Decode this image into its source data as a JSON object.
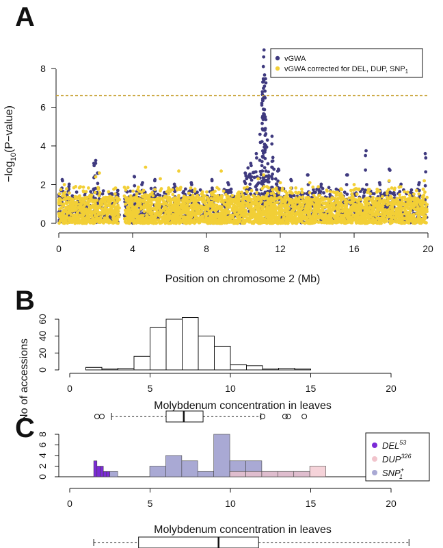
{
  "chart_data": [
    {
      "panel": "A",
      "type": "scatter",
      "xlabel": "Position on chromosome 2 (Mb)",
      "ylabel_prefix": "−log",
      "ylabel_sub": "10",
      "ylabel_suffix": "(P−value)",
      "xlim": [
        0,
        20
      ],
      "ylim": [
        0,
        9
      ],
      "xticks": [
        0,
        4,
        8,
        12,
        16,
        20
      ],
      "yticks": [
        0,
        2,
        4,
        6,
        8
      ],
      "threshold": 6.6,
      "legend_position": "top-right",
      "series": [
        {
          "name": "vGWA",
          "color": "#3f3a7f",
          "peaks": [
            [
              0.2,
              2.2
            ],
            [
              0.55,
              1.9
            ],
            [
              1.9,
              3.1
            ],
            [
              2.0,
              3.25
            ],
            [
              2.1,
              2.6
            ],
            [
              3.2,
              1.5
            ],
            [
              4.1,
              2.4
            ],
            [
              4.5,
              2.0
            ],
            [
              5.2,
              2.2
            ],
            [
              6.3,
              1.9
            ],
            [
              7.2,
              2.0
            ],
            [
              8.3,
              2.2
            ],
            [
              9.2,
              2.0
            ],
            [
              10.1,
              2.6
            ],
            [
              10.4,
              3.1
            ],
            [
              10.7,
              3.6
            ],
            [
              10.9,
              4.6
            ],
            [
              11.0,
              6.2
            ],
            [
              11.05,
              7.3
            ],
            [
              11.08,
              8.1
            ],
            [
              11.1,
              8.6
            ],
            [
              11.12,
              8.96
            ],
            [
              11.18,
              5.5
            ],
            [
              11.3,
              4.3
            ],
            [
              11.55,
              4.5
            ],
            [
              11.6,
              3.4
            ],
            [
              11.9,
              2.8
            ],
            [
              12.6,
              2.2
            ],
            [
              13.5,
              2.5
            ],
            [
              14.2,
              1.9
            ],
            [
              15.6,
              2.5
            ],
            [
              16.65,
              3.75
            ],
            [
              17.4,
              2.0
            ],
            [
              17.9,
              2.8
            ],
            [
              18.5,
              1.9
            ],
            [
              19.5,
              2.0
            ],
            [
              19.85,
              3.6
            ]
          ]
        },
        {
          "name": "vGWA corrected for DEL, DUP, SNP",
          "name_sub": "1",
          "color": "#f2cf36",
          "peaks": [
            [
              0.3,
              2.0
            ],
            [
              2.0,
              2.4
            ],
            [
              2.2,
              2.6
            ],
            [
              4.7,
              2.9
            ],
            [
              5.5,
              2.3
            ],
            [
              6.5,
              2.7
            ],
            [
              8.8,
              2.7
            ],
            [
              10.8,
              2.3
            ],
            [
              11.1,
              2.5
            ],
            [
              12.0,
              2.1
            ],
            [
              13.6,
              2.1
            ],
            [
              16.0,
              2.0
            ],
            [
              17.9,
              2.2
            ],
            [
              19.8,
              2.2
            ]
          ]
        }
      ]
    },
    {
      "panel": "B",
      "type": "bar",
      "subtype": "histogram",
      "xlabel": "Molybdenum concentration in leaves",
      "ylabel": "No of accessions",
      "xlim": [
        0,
        20
      ],
      "ylim": [
        0,
        60
      ],
      "xticks": [
        0,
        5,
        10,
        15,
        20
      ],
      "yticks": [
        0,
        20,
        40,
        60
      ],
      "bin_width": 1,
      "bins": [
        1,
        2,
        3,
        4,
        5,
        6,
        7,
        8,
        9,
        10,
        11,
        12,
        13,
        14
      ],
      "values": [
        3,
        1,
        2,
        16,
        50,
        60,
        62,
        40,
        28,
        6,
        5,
        1,
        2,
        1
      ],
      "boxplot": {
        "min": 2.6,
        "q1": 6.0,
        "median": 7.1,
        "q3": 8.3,
        "max": 11.9
      },
      "outliers": [
        1.7,
        2.0,
        12.0,
        13.4,
        13.6,
        14.6
      ]
    },
    {
      "panel": "C",
      "type": "bar",
      "subtype": "histogram",
      "xlabel": "Molybdenum concentration in leaves",
      "ylabel": "No of accessions",
      "xlim": [
        0,
        22
      ],
      "ylim": [
        0,
        8
      ],
      "xticks": [
        0,
        5,
        10,
        15,
        20
      ],
      "yticks": [
        0,
        2,
        4,
        6,
        8
      ],
      "legend_position": "top-right",
      "series": [
        {
          "name": "DEL",
          "sup": "53",
          "color": "#7b2bd6",
          "bars": [
            [
              1.5,
              1.7,
              3
            ],
            [
              1.7,
              1.9,
              2
            ],
            [
              1.9,
              2.1,
              2
            ],
            [
              2.1,
              2.3,
              1
            ],
            [
              2.3,
              2.5,
              1
            ]
          ]
        },
        {
          "name": "DUP",
          "sup": "326",
          "color": "#f1c4cc",
          "bars": [
            [
              10,
              11,
              1
            ],
            [
              11,
              12,
              1
            ],
            [
              12,
              13,
              1
            ],
            [
              13,
              14,
              1
            ],
            [
              14,
              15,
              1
            ],
            [
              15,
              16,
              2
            ],
            [
              19,
              20,
              1
            ],
            [
              21,
              22,
              1
            ]
          ]
        },
        {
          "name": "SNP",
          "sub": "1",
          "sup": "+",
          "color": "#a9a9d4",
          "bars": [
            [
              2.5,
              3,
              1
            ],
            [
              5,
              6,
              2
            ],
            [
              6,
              7,
              4
            ],
            [
              7,
              8,
              3
            ],
            [
              8,
              9,
              1
            ],
            [
              9,
              10,
              8
            ],
            [
              10,
              11,
              3
            ],
            [
              11,
              12,
              3
            ],
            [
              12,
              13,
              1
            ],
            [
              13,
              14,
              1
            ],
            [
              14,
              15,
              1
            ]
          ]
        }
      ],
      "boxplot": {
        "min": 1.5,
        "q1": 4.3,
        "median": 9.3,
        "q3": 11.8,
        "max": 21.2
      }
    }
  ]
}
